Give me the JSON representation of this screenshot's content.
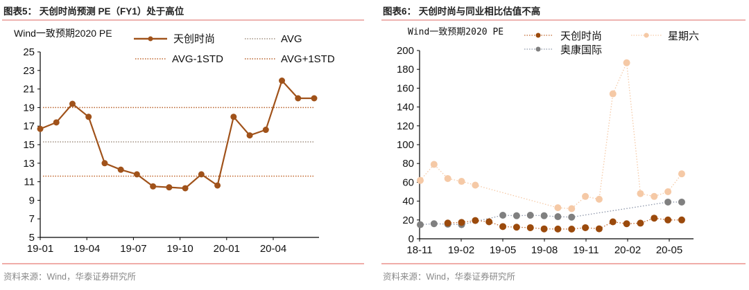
{
  "chart_data": [
    {
      "type": "line",
      "title": "图表5：  天创时尚预测 PE（FY1）处于高位",
      "unit_label": "Wind一致预期2020 PE",
      "source": "资料来源：Wind，华泰证券研究所",
      "x_tick_labels": [
        "19-01",
        "19-04",
        "19-07",
        "19-10",
        "20-01",
        "20-04"
      ],
      "y_tick_labels": [
        "5",
        "7",
        "9",
        "11",
        "13",
        "15",
        "17",
        "19",
        "21",
        "23",
        "25"
      ],
      "ylim": [
        5,
        25
      ],
      "grid": false,
      "legend_position": "top-right",
      "series": [
        {
          "name": "天创时尚",
          "style": "solid-marker",
          "color": "#A0521A",
          "x": [
            "19-01",
            "19-02",
            "19-03",
            "19-04",
            "19-05",
            "19-06",
            "19-07",
            "19-08",
            "19-09",
            "19-10",
            "19-11",
            "19-12",
            "20-01",
            "20-02",
            "20-03",
            "20-04",
            "20-05",
            "20-06"
          ],
          "values": [
            16.7,
            17.4,
            19.4,
            18.0,
            13.0,
            12.3,
            11.8,
            10.5,
            10.4,
            10.3,
            11.8,
            10.6,
            18.0,
            16.0,
            16.6,
            21.9,
            20.0,
            20.0
          ]
        },
        {
          "name": "AVG",
          "style": "dotted",
          "color": "#A08F80",
          "value": 15.3
        },
        {
          "name": "AVG-1STD",
          "style": "dotted",
          "color": "#C0652B",
          "value": 11.6
        },
        {
          "name": "AVG+1STD",
          "style": "dotted",
          "color": "#B8602A",
          "value": 19.0
        }
      ]
    },
    {
      "type": "line",
      "title": "图表6：  天创时尚与同业相比估值不高",
      "unit_label": "Wind一致预期2020 PE",
      "source": "资料来源：Wind，华泰证券研究所",
      "x_tick_labels": [
        "18-11",
        "19-02",
        "19-05",
        "19-08",
        "19-11",
        "20-02",
        "20-05"
      ],
      "y_tick_labels": [
        "0",
        "20",
        "40",
        "60",
        "80",
        "100",
        "120",
        "140",
        "160",
        "180",
        "200"
      ],
      "ylim": [
        0,
        200
      ],
      "grid": false,
      "legend_position": "top-right",
      "x": [
        "18-11",
        "18-12",
        "19-01",
        "19-02",
        "19-03",
        "19-04",
        "19-05",
        "19-06",
        "19-07",
        "19-08",
        "19-09",
        "19-10",
        "19-11",
        "19-12",
        "20-01",
        "20-02",
        "20-03",
        "20-04",
        "20-05",
        "20-06"
      ],
      "series": [
        {
          "name": "星期六",
          "color": "#F5C9A6",
          "values": [
            62,
            79,
            64,
            61,
            57,
            null,
            null,
            null,
            null,
            null,
            33,
            32,
            45,
            42,
            154,
            187,
            48,
            45,
            50,
            69
          ]
        },
        {
          "name": "奥康国际",
          "color": "#808080",
          "values": [
            15,
            16,
            15.5,
            15,
            null,
            null,
            25,
            24.5,
            25,
            24.5,
            23.5,
            23,
            null,
            null,
            null,
            null,
            null,
            null,
            39,
            39
          ]
        },
        {
          "name": "天创时尚",
          "color": "#9B4A0C",
          "values": [
            null,
            null,
            16.7,
            17.4,
            19.4,
            18,
            13,
            12.3,
            11.8,
            10.5,
            10.4,
            10.3,
            11.8,
            10.6,
            18,
            16,
            16.6,
            21.9,
            20,
            20
          ]
        }
      ]
    }
  ]
}
